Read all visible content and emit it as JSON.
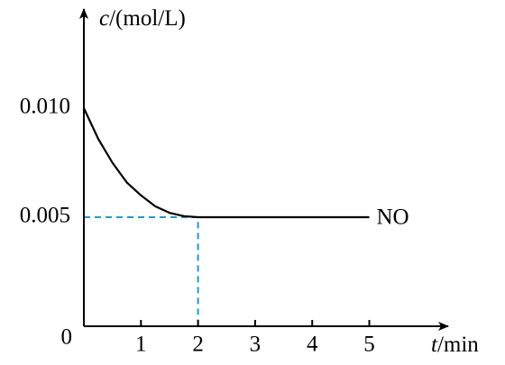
{
  "chart_data": {
    "type": "line",
    "y_axis_label": {
      "symbol": "c",
      "unit": "/(mol/L)"
    },
    "x_axis_label": {
      "symbol": "t",
      "unit": "/min"
    },
    "x": [
      0,
      0.25,
      0.5,
      0.75,
      1,
      1.25,
      1.5,
      1.75,
      2,
      5
    ],
    "series": [
      {
        "name": "NO",
        "color": "#000000",
        "values": [
          0.01,
          0.0086,
          0.0075,
          0.0066,
          0.006,
          0.0055,
          0.0052,
          0.00505,
          0.005,
          0.005
        ]
      }
    ],
    "xlim": [
      0,
      6.4
    ],
    "ylim": [
      0,
      0.0145
    ],
    "xticks": [
      1,
      2,
      3,
      4,
      5
    ],
    "yticks": [
      0,
      0.005,
      {
        "value": 0.01,
        "label": "0.010"
      }
    ],
    "guide": {
      "x": 2,
      "y": 0.005,
      "color": "#1a9ad6"
    }
  }
}
